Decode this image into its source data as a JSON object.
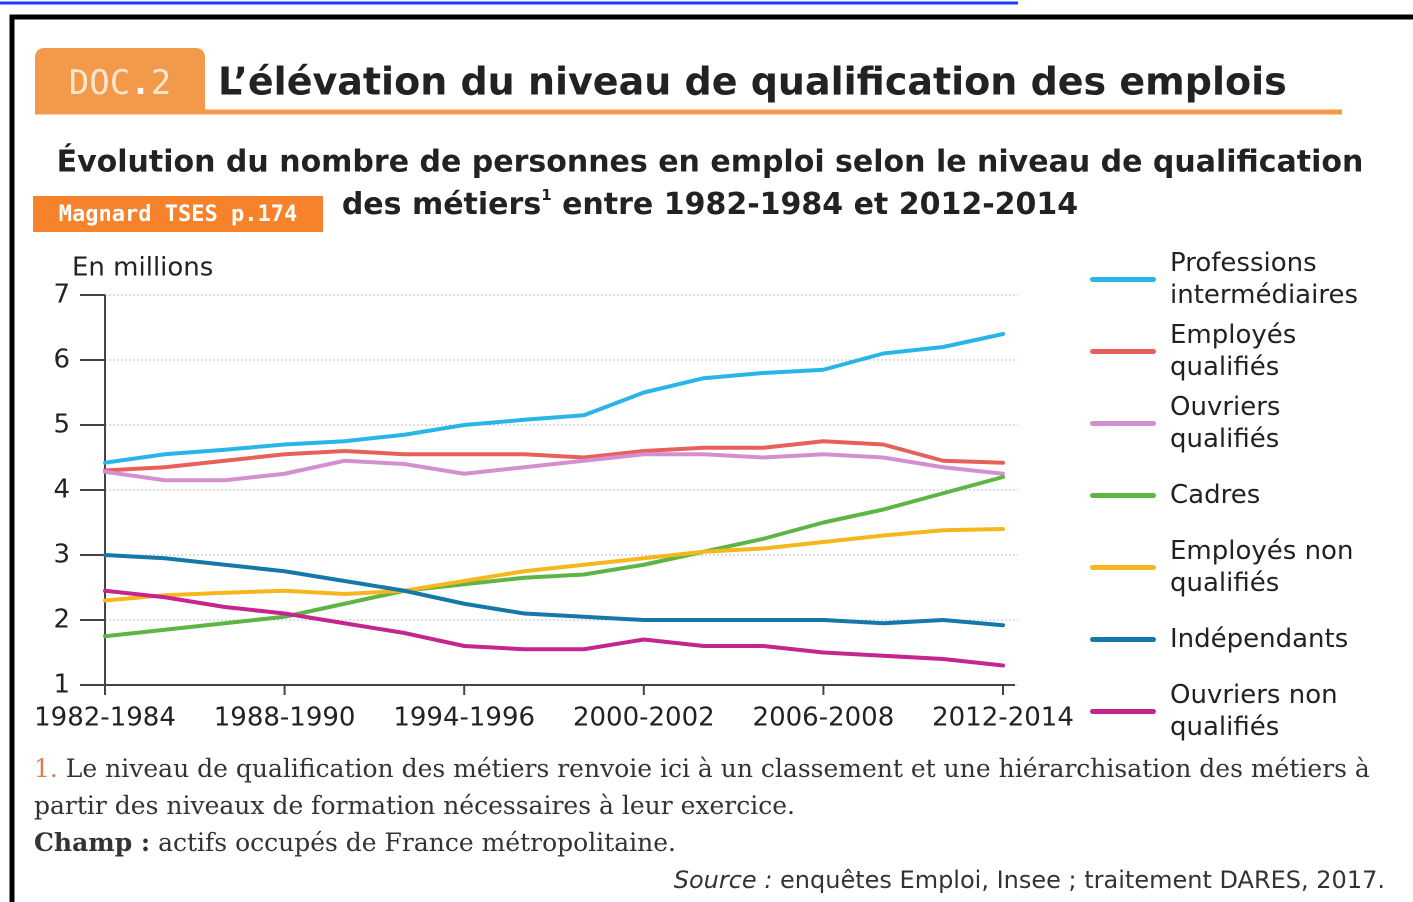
{
  "header": {
    "doc_label": "DOC",
    "doc_number": "2",
    "title": "L’élévation du niveau de qualification des emplois",
    "tag": "Magnard TSES p.174"
  },
  "chart_data": {
    "type": "line",
    "title": "Évolution du nombre de personnes en emploi selon le niveau de qualification",
    "title_line2": "des métiers",
    "title_note": "1",
    "title_end": " entre 1982-1984 et 2012-2014",
    "y_label": "En millions",
    "categories": [
      "1982-1984",
      null,
      null,
      "1988-1990",
      null,
      null,
      "1994-1996",
      null,
      null,
      "2000-2002",
      null,
      null,
      "2006-2008",
      null,
      null,
      "2012-2014"
    ],
    "ylim": [
      1,
      7
    ],
    "yticks": [
      1,
      2,
      3,
      4,
      5,
      6,
      7
    ],
    "grid": true,
    "series": [
      {
        "name": "Professions intermédiaires",
        "color": "#29b5e8",
        "values": [
          4.42,
          4.55,
          4.62,
          4.7,
          4.75,
          4.85,
          5.0,
          5.08,
          5.15,
          5.5,
          5.72,
          5.8,
          5.85,
          6.1,
          6.2,
          6.4
        ]
      },
      {
        "name": "Employés qualifiés",
        "color": "#e8605a",
        "values": [
          4.3,
          4.35,
          4.45,
          4.55,
          4.6,
          4.55,
          4.55,
          4.55,
          4.5,
          4.6,
          4.65,
          4.65,
          4.75,
          4.7,
          4.45,
          4.42
        ]
      },
      {
        "name": "Ouvriers qualifiés",
        "color": "#d48fd0",
        "values": [
          4.28,
          4.15,
          4.15,
          4.25,
          4.45,
          4.4,
          4.25,
          4.35,
          4.45,
          4.55,
          4.55,
          4.5,
          4.55,
          4.5,
          4.35,
          4.25
        ]
      },
      {
        "name": "Cadres",
        "color": "#5cb544",
        "values": [
          1.75,
          1.85,
          1.95,
          2.05,
          2.25,
          2.45,
          2.55,
          2.65,
          2.7,
          2.85,
          3.05,
          3.25,
          3.5,
          3.7,
          3.95,
          4.2
        ]
      },
      {
        "name": "Employés non qualifiés",
        "color": "#f6b61e",
        "values": [
          2.3,
          2.38,
          2.42,
          2.45,
          2.4,
          2.45,
          2.6,
          2.75,
          2.85,
          2.95,
          3.05,
          3.1,
          3.2,
          3.3,
          3.38,
          3.4
        ]
      },
      {
        "name": "Indépendants",
        "color": "#1479a8",
        "values": [
          3.0,
          2.95,
          2.85,
          2.75,
          2.6,
          2.45,
          2.25,
          2.1,
          2.05,
          2.0,
          2.0,
          2.0,
          2.0,
          1.95,
          2.0,
          1.92
        ]
      },
      {
        "name": "Ouvriers non qualifiés",
        "color": "#c4258f",
        "values": [
          2.45,
          2.35,
          2.2,
          2.1,
          1.95,
          1.8,
          1.6,
          1.55,
          1.55,
          1.7,
          1.6,
          1.6,
          1.5,
          1.45,
          1.4,
          1.3
        ]
      }
    ]
  },
  "footnote": {
    "number": "1.",
    "text": " Le niveau de qualification des métiers renvoie ici à un classement et une hiérarchisation des métiers à partir des niveaux de formation nécessaires à leur exercice."
  },
  "champ": {
    "label": "Champ :",
    "text": " actifs occupés de France métropolitaine."
  },
  "source": {
    "label": "Source :",
    "text": " enquêtes Emploi, Insee ; traitement DARES, 2017."
  }
}
